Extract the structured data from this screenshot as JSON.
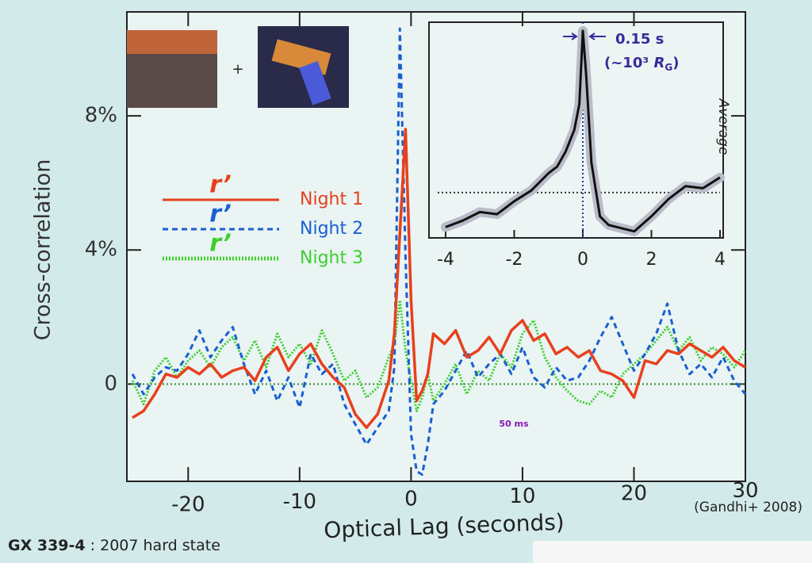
{
  "chart_data": {
    "type": "line",
    "y_label": "Cross-correlation",
    "x_label": "Optical Lag (seconds)",
    "xlim": [
      -25.5,
      30
    ],
    "ylim": [
      -2.9,
      11.1
    ],
    "xticks": [
      -20,
      -10,
      0,
      10,
      20,
      30
    ],
    "yticks": [
      0,
      {
        "value": 4,
        "label": "4%"
      },
      {
        "value": 8,
        "label": "8%"
      }
    ],
    "reference_line": 0,
    "x": [
      -25,
      -24,
      -23,
      -22,
      -21,
      -20,
      -19,
      -18,
      -17,
      -16,
      -15,
      -14,
      -13,
      -12,
      -11,
      -10,
      -9,
      -8,
      -7,
      -6,
      -5,
      -4,
      -3,
      -2,
      -1.5,
      -1,
      -0.5,
      0,
      0.5,
      1,
      1.5,
      2,
      3,
      4,
      5,
      6,
      7,
      8,
      9,
      10,
      11,
      12,
      13,
      14,
      15,
      16,
      17,
      18,
      19,
      20,
      21,
      22,
      23,
      24,
      25,
      26,
      27,
      28,
      29,
      30
    ],
    "series": [
      {
        "name": "Night 1",
        "band": "r’",
        "color": "#e8401c",
        "style": "solid",
        "values": [
          -1.0,
          -0.8,
          -0.3,
          0.3,
          0.2,
          0.5,
          0.3,
          0.6,
          0.2,
          0.4,
          0.5,
          0.1,
          0.8,
          1.1,
          0.4,
          0.9,
          1.2,
          0.6,
          0.2,
          -0.1,
          -0.9,
          -1.3,
          -0.9,
          0.1,
          1.5,
          4.5,
          7.6,
          2.5,
          -0.5,
          -0.2,
          0.3,
          1.5,
          1.2,
          1.6,
          0.8,
          1.0,
          1.4,
          0.9,
          1.6,
          1.9,
          1.3,
          1.5,
          0.9,
          1.1,
          0.8,
          1.0,
          0.4,
          0.3,
          0.1,
          -0.4,
          0.7,
          0.6,
          1.0,
          0.9,
          1.2,
          1.0,
          0.8,
          1.1,
          0.7,
          0.5
        ]
      },
      {
        "name": "Night 2",
        "band": "r’",
        "color": "#1a5fd0",
        "style": "dashed",
        "values": [
          0.3,
          -0.3,
          0.2,
          0.5,
          0.4,
          0.9,
          1.6,
          0.8,
          1.3,
          1.7,
          0.6,
          -0.3,
          0.4,
          -0.5,
          0.2,
          -0.7,
          0.9,
          0.3,
          0.6,
          -0.6,
          -1.2,
          -1.8,
          -1.3,
          -0.8,
          0.5,
          10.6,
          3.8,
          -1.5,
          -2.6,
          -2.7,
          -1.8,
          -0.6,
          -0.2,
          0.4,
          1.0,
          0.2,
          0.6,
          0.9,
          0.3,
          1.1,
          0.2,
          -0.1,
          0.5,
          0.1,
          0.2,
          0.7,
          1.4,
          2.0,
          1.2,
          0.4,
          0.9,
          1.5,
          2.4,
          1.0,
          0.3,
          0.6,
          0.2,
          0.8,
          0.1,
          -0.3
        ]
      },
      {
        "name": "Night 3",
        "band": "r’",
        "color": "#3ecf2e",
        "style": "dotted",
        "values": [
          0.1,
          -0.6,
          0.4,
          0.8,
          0.2,
          0.7,
          1.0,
          0.5,
          1.1,
          1.4,
          0.7,
          1.3,
          0.5,
          1.5,
          0.8,
          1.2,
          0.6,
          1.6,
          0.9,
          0.1,
          0.4,
          -0.4,
          -0.1,
          0.8,
          1.2,
          2.5,
          1.0,
          0.1,
          -0.8,
          -0.4,
          0.3,
          -0.5,
          0.0,
          0.6,
          -0.3,
          0.4,
          0.1,
          0.9,
          0.5,
          1.5,
          1.9,
          0.8,
          0.2,
          -0.2,
          -0.5,
          -0.6,
          -0.2,
          -0.4,
          0.3,
          0.6,
          0.9,
          1.3,
          1.7,
          1.0,
          1.4,
          0.7,
          1.1,
          0.9,
          0.5,
          1.0
        ]
      }
    ],
    "annotation": "50 ms",
    "inset": {
      "type": "line",
      "label": "Average",
      "xlim": [
        -4.23,
        4.0
      ],
      "ylim": [
        0,
        1
      ],
      "xticks": [
        -4,
        -2,
        0,
        2,
        4
      ],
      "reference_line": 0.21,
      "vline": 0,
      "peak_label": "0.15 s",
      "peak_note": [
        "(~10³ ",
        "R",
        "G",
        ")"
      ],
      "color": "#111111",
      "x": [
        -4,
        -3.5,
        -3,
        -2.5,
        -2,
        -1.5,
        -1,
        -0.75,
        -0.5,
        -0.25,
        -0.1,
        0,
        0.1,
        0.25,
        0.5,
        0.75,
        1,
        1.5,
        2,
        2.5,
        3,
        3.5,
        4
      ],
      "values": [
        0.05,
        0.08,
        0.12,
        0.11,
        0.17,
        0.22,
        0.3,
        0.33,
        0.4,
        0.5,
        0.62,
        0.96,
        0.75,
        0.35,
        0.1,
        0.06,
        0.05,
        0.03,
        0.1,
        0.18,
        0.24,
        0.23,
        0.28
      ]
    }
  },
  "images_separator": "+",
  "footer": {
    "object": "GX 339-4",
    "state": " : 2007 hard state",
    "credit": "(Gandhi+ 2008)"
  }
}
